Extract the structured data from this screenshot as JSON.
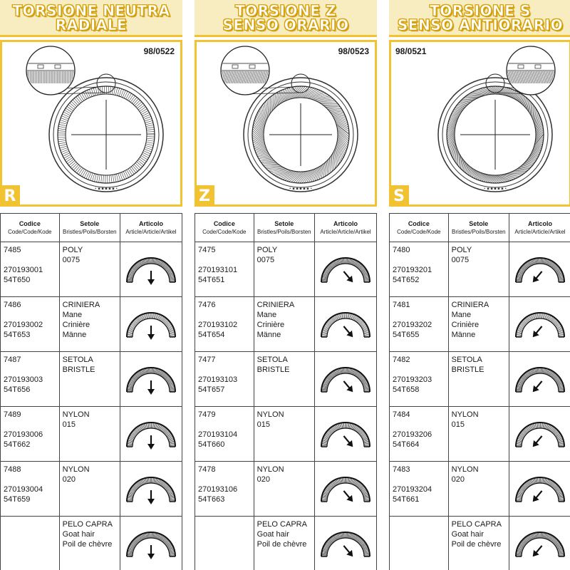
{
  "header_labels": {
    "code": "Codice",
    "code_sub": "Code/Code/Kode",
    "bristles": "Setole",
    "bristles_sub": "Bristles/Poils/Borsten",
    "article": "Articolo",
    "article_sub": "Article/Article/Artikel"
  },
  "columns": [
    {
      "title_line1": "TORSIONE NEUTRA",
      "title_line2": "RADIALE",
      "ref": "98/0522",
      "letter": "R",
      "rows": [
        {
          "code": "7485",
          "code2": "270193001",
          "code3": "54T650",
          "bristle": "POLY",
          "bristle2": "",
          "bristle3": "",
          "size": "0075"
        },
        {
          "code": "7486",
          "code2": "270193002",
          "code3": "54T653",
          "bristle": "CRINIERA",
          "bristle2": "Mane",
          "bristle3": "Crinière",
          "size": "Männe"
        },
        {
          "code": "7487",
          "code2": "270193003",
          "code3": "54T656",
          "bristle": "SETOLA",
          "bristle2": "BRISTLE",
          "bristle3": "",
          "size": ""
        },
        {
          "code": "7489",
          "code2": "270193006",
          "code3": "54T662",
          "bristle": "NYLON",
          "bristle2": "",
          "bristle3": "",
          "size": "015"
        },
        {
          "code": "7488",
          "code2": "270193004",
          "code3": "54T659",
          "bristle": "NYLON",
          "bristle2": "",
          "bristle3": "",
          "size": "020"
        },
        {
          "code": "",
          "code2": "",
          "code3": "",
          "bristle": "PELO CAPRA",
          "bristle2": "Goat hair",
          "bristle3": "Poil de chèvre",
          "size": ""
        }
      ]
    },
    {
      "title_line1": "TORSIONE Z",
      "title_line2": "SENSO ORARIO",
      "ref": "98/0523",
      "letter": "Z",
      "rows": [
        {
          "code": "7475",
          "code2": "270193101",
          "code3": "54T651",
          "bristle": "POLY",
          "bristle2": "",
          "bristle3": "",
          "size": "0075"
        },
        {
          "code": "7476",
          "code2": "270193102",
          "code3": "54T654",
          "bristle": "CRINIERA",
          "bristle2": "Mane",
          "bristle3": "Crinière",
          "size": "Männe"
        },
        {
          "code": "7477",
          "code2": "270193103",
          "code3": "54T657",
          "bristle": "SETOLA",
          "bristle2": "BRISTLE",
          "bristle3": "",
          "size": ""
        },
        {
          "code": "7479",
          "code2": "270193104",
          "code3": "54T660",
          "bristle": "NYLON",
          "bristle2": "",
          "bristle3": "",
          "size": "015"
        },
        {
          "code": "7478",
          "code2": "270193106",
          "code3": "54T663",
          "bristle": "NYLON",
          "bristle2": "",
          "bristle3": "",
          "size": "020"
        },
        {
          "code": "",
          "code2": "",
          "code3": "",
          "bristle": "PELO CAPRA",
          "bristle2": "Goat hair",
          "bristle3": "Poil de chèvre",
          "size": ""
        }
      ]
    },
    {
      "title_line1": "TORSIONE S",
      "title_line2": "SENSO ANTIORARIO",
      "ref": "98/0521",
      "letter": "S",
      "rows": [
        {
          "code": "7480",
          "code2": "270193201",
          "code3": "54T652",
          "bristle": "POLY",
          "bristle2": "",
          "bristle3": "",
          "size": "0075"
        },
        {
          "code": "7481",
          "code2": "270193202",
          "code3": "54T655",
          "bristle": "CRINIERA",
          "bristle2": "Mane",
          "bristle3": "Crinière",
          "size": "Männe"
        },
        {
          "code": "7482",
          "code2": "270193203",
          "code3": "54T658",
          "bristle": "SETOLA",
          "bristle2": "BRISTLE",
          "bristle3": "",
          "size": ""
        },
        {
          "code": "7484",
          "code2": "270193206",
          "code3": "54T664",
          "bristle": "NYLON",
          "bristle2": "",
          "bristle3": "",
          "size": "015"
        },
        {
          "code": "7483",
          "code2": "270193204",
          "code3": "54T661",
          "bristle": "NYLON",
          "bristle2": "",
          "bristle3": "",
          "size": "020"
        },
        {
          "code": "",
          "code2": "",
          "code3": "",
          "bristle": "PELO CAPRA",
          "bristle2": "Goat hair",
          "bristle3": "Poil de chèvre",
          "size": ""
        }
      ]
    }
  ],
  "colors": {
    "accent": "#f1c232",
    "title_bg": "#f7edc0"
  }
}
